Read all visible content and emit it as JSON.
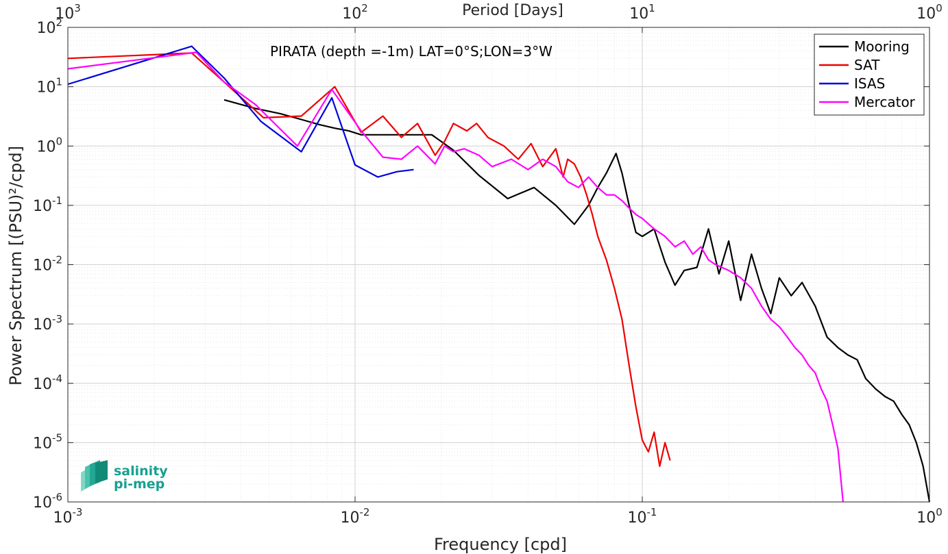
{
  "chart_data": {
    "type": "line",
    "title": "PIRATA (depth =-1m) LAT=0°S;LON=3°W",
    "xlabel": "Frequency [cpd]",
    "ylabel": "Power Spectrum [(PSU)²/cpd]",
    "top_xlabel": "Period [Days]",
    "xscale": "log",
    "yscale": "log",
    "xlim": [
      0.001,
      1
    ],
    "ylim": [
      1e-06,
      100
    ],
    "grid": true,
    "legend_position": "top-right",
    "x_ticks": [
      {
        "base": "10",
        "exp": "-3",
        "value": 0.001
      },
      {
        "base": "10",
        "exp": "-2",
        "value": 0.01
      },
      {
        "base": "10",
        "exp": "-1",
        "value": 0.1
      },
      {
        "base": "10",
        "exp": "0",
        "value": 1
      }
    ],
    "top_ticks": [
      {
        "base": "10",
        "exp": "3",
        "value": 0.001
      },
      {
        "base": "10",
        "exp": "2",
        "value": 0.01
      },
      {
        "base": "10",
        "exp": "1",
        "value": 0.1
      },
      {
        "base": "10",
        "exp": "0",
        "value": 1
      }
    ],
    "y_ticks": [
      {
        "base": "10",
        "exp": "2",
        "value": 100
      },
      {
        "base": "10",
        "exp": "1",
        "value": 10
      },
      {
        "base": "10",
        "exp": "0",
        "value": 1
      },
      {
        "base": "10",
        "exp": "-1",
        "value": 0.1
      },
      {
        "base": "10",
        "exp": "-2",
        "value": 0.01
      },
      {
        "base": "10",
        "exp": "-3",
        "value": 0.001
      },
      {
        "base": "10",
        "exp": "-4",
        "value": 0.0001
      },
      {
        "base": "10",
        "exp": "-5",
        "value": 1e-05
      },
      {
        "base": "10",
        "exp": "-6",
        "value": 1e-06
      }
    ],
    "series": [
      {
        "name": "Mooring",
        "color": "#000000",
        "x": [
          0.0035,
          0.0045,
          0.0055,
          0.0065,
          0.0075,
          0.0085,
          0.0095,
          0.0105,
          0.012,
          0.014,
          0.016,
          0.0185,
          0.022,
          0.027,
          0.034,
          0.042,
          0.05,
          0.058,
          0.065,
          0.07,
          0.075,
          0.081,
          0.085,
          0.09,
          0.095,
          0.1,
          0.11,
          0.12,
          0.13,
          0.14,
          0.155,
          0.17,
          0.185,
          0.2,
          0.22,
          0.24,
          0.26,
          0.28,
          0.3,
          0.33,
          0.36,
          0.4,
          0.44,
          0.48,
          0.52,
          0.56,
          0.6,
          0.65,
          0.7,
          0.75,
          0.8,
          0.85,
          0.9,
          0.95,
          1.0
        ],
        "y": [
          6.0,
          4.3,
          3.5,
          2.8,
          2.3,
          2.0,
          1.8,
          1.55,
          1.55,
          1.55,
          1.55,
          1.55,
          0.85,
          0.32,
          0.13,
          0.2,
          0.1,
          0.048,
          0.1,
          0.2,
          0.35,
          0.75,
          0.35,
          0.1,
          0.035,
          0.03,
          0.04,
          0.011,
          0.0045,
          0.008,
          0.009,
          0.04,
          0.007,
          0.025,
          0.0025,
          0.015,
          0.004,
          0.0015,
          0.006,
          0.003,
          0.005,
          0.002,
          0.0006,
          0.0004,
          0.0003,
          0.00025,
          0.00012,
          8e-05,
          6e-05,
          5e-05,
          3e-05,
          2e-05,
          1e-05,
          4e-06,
          1e-06
        ]
      },
      {
        "name": "SAT",
        "color": "#ee0000",
        "x": [
          0.001,
          0.0027,
          0.0035,
          0.0048,
          0.0065,
          0.0085,
          0.0105,
          0.0125,
          0.0145,
          0.0165,
          0.019,
          0.0205,
          0.022,
          0.0245,
          0.0265,
          0.029,
          0.033,
          0.037,
          0.041,
          0.045,
          0.05,
          0.053,
          0.055,
          0.058,
          0.061,
          0.064,
          0.067,
          0.07,
          0.075,
          0.08,
          0.085,
          0.09,
          0.095,
          0.1,
          0.105,
          0.11,
          0.115,
          0.12,
          0.125
        ],
        "y": [
          30,
          37,
          12,
          3.0,
          3.2,
          10,
          1.7,
          3.2,
          1.4,
          2.4,
          0.7,
          1.2,
          2.4,
          1.8,
          2.4,
          1.4,
          1.0,
          0.6,
          1.1,
          0.45,
          0.9,
          0.3,
          0.6,
          0.5,
          0.3,
          0.15,
          0.07,
          0.03,
          0.012,
          0.004,
          0.0012,
          0.0002,
          4e-05,
          1.1e-05,
          7e-06,
          1.5e-05,
          4e-06,
          1e-05,
          5e-06
        ]
      },
      {
        "name": "ISAS",
        "color": "#0000dd",
        "x": [
          0.001,
          0.0027,
          0.0035,
          0.0047,
          0.0065,
          0.0083,
          0.01,
          0.012,
          0.014,
          0.016
        ],
        "y": [
          11,
          48,
          14,
          2.6,
          0.8,
          6.5,
          0.48,
          0.3,
          0.37,
          0.4
        ]
      },
      {
        "name": "Mercator",
        "color": "#ff00ff",
        "x": [
          0.001,
          0.0028,
          0.0035,
          0.0045,
          0.0063,
          0.0083,
          0.0105,
          0.0125,
          0.0145,
          0.0165,
          0.019,
          0.0205,
          0.022,
          0.024,
          0.027,
          0.03,
          0.035,
          0.04,
          0.045,
          0.05,
          0.055,
          0.06,
          0.065,
          0.07,
          0.075,
          0.08,
          0.085,
          0.09,
          0.095,
          0.1,
          0.11,
          0.12,
          0.13,
          0.14,
          0.15,
          0.16,
          0.17,
          0.18,
          0.2,
          0.22,
          0.24,
          0.26,
          0.28,
          0.3,
          0.32,
          0.34,
          0.36,
          0.38,
          0.4,
          0.42,
          0.44,
          0.46,
          0.48,
          0.5
        ],
        "y": [
          20,
          38,
          12,
          5.0,
          1.0,
          9.0,
          1.8,
          0.65,
          0.6,
          1.0,
          0.5,
          1.0,
          0.8,
          0.9,
          0.7,
          0.45,
          0.6,
          0.4,
          0.6,
          0.45,
          0.25,
          0.2,
          0.3,
          0.2,
          0.15,
          0.15,
          0.12,
          0.09,
          0.07,
          0.06,
          0.04,
          0.03,
          0.02,
          0.025,
          0.015,
          0.02,
          0.012,
          0.01,
          0.008,
          0.006,
          0.004,
          0.002,
          0.0012,
          0.0009,
          0.0006,
          0.0004,
          0.0003,
          0.0002,
          0.00015,
          8e-05,
          5e-05,
          2e-05,
          8e-06,
          1e-06
        ]
      }
    ]
  },
  "logo": {
    "line1": "salinity",
    "line2": "pi-mep"
  }
}
